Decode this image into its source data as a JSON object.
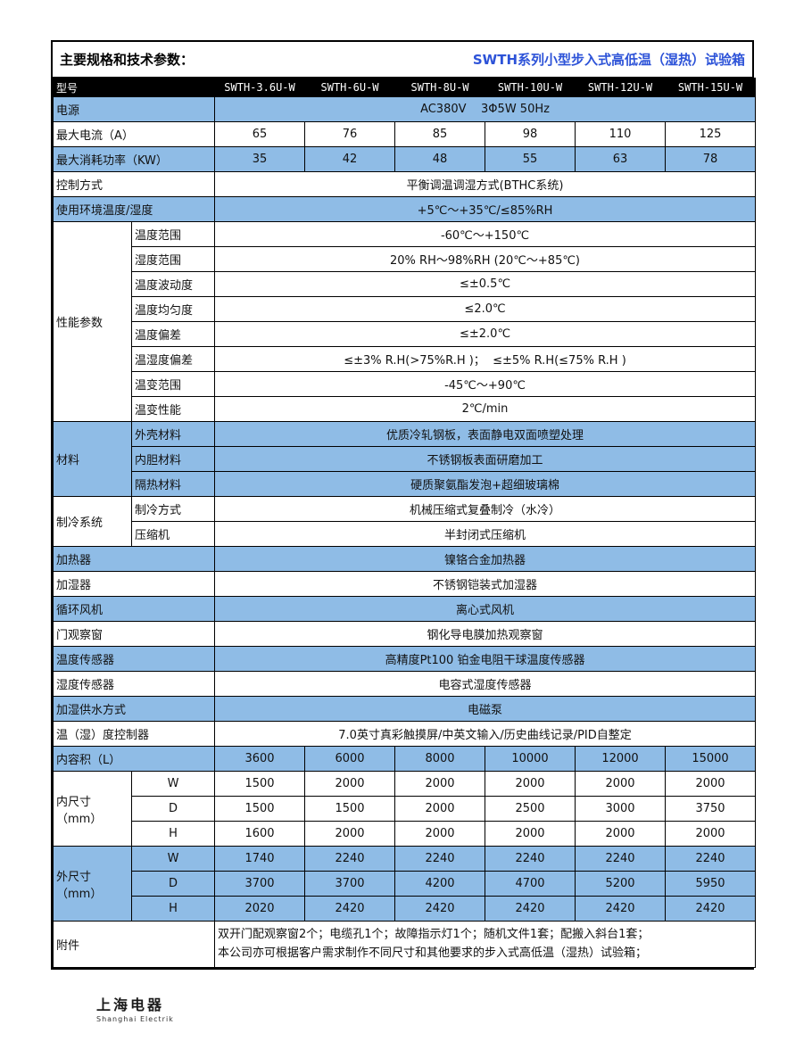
{
  "header": {
    "page_title": "主要规格和技术参数：",
    "series_title": "SWTH系列小型步入式高低温（湿热）试验箱"
  },
  "colors": {
    "row_blue": "#8FBCE6",
    "series_title_blue": "#2D53D8",
    "model_row_bg": "#000000",
    "border": "#000000"
  },
  "models_row": {
    "label": "型号",
    "models": [
      "SWTH-3.6U-W",
      "SWTH-6U-W",
      "SWTH-8U-W",
      "SWTH-10U-W",
      "SWTH-12U-W",
      "SWTH-15U-W"
    ]
  },
  "rows": [
    {
      "kind": "merged",
      "label": "电源",
      "value": "AC380V    3Φ5W 50Hz",
      "shade": "blue"
    },
    {
      "kind": "cols",
      "label": "最大电流（A）",
      "values": [
        "65",
        "76",
        "85",
        "98",
        "110",
        "125"
      ],
      "shade": "white"
    },
    {
      "kind": "cols",
      "label": "最大消耗功率（KW）",
      "values": [
        "35",
        "42",
        "48",
        "55",
        "63",
        "78"
      ],
      "shade": "blue"
    },
    {
      "kind": "merged",
      "label": "控制方式",
      "value": "平衡调温调湿方式(BTHC系统)",
      "shade": "white"
    },
    {
      "kind": "merged",
      "label": "使用环境温度/湿度",
      "value": "+5℃～+35℃/≤85%RH",
      "shade": "blue"
    },
    {
      "kind": "group",
      "label": "性能参数",
      "shade": "white",
      "subs": [
        {
          "sub": "温度范围",
          "value": "-60℃～+150℃"
        },
        {
          "sub": "湿度范围",
          "value": "20% RH～98%RH (20℃～+85℃)"
        },
        {
          "sub": "温度波动度",
          "value": "≤±0.5℃"
        },
        {
          "sub": "温度均匀度",
          "value": "≤2.0℃"
        },
        {
          "sub": "温度偏差",
          "value": "≤±2.0℃"
        },
        {
          "sub": "温湿度偏差",
          "value": "≤±3% R.H(>75%R.H )；  ≤±5% R.H(≤75% R.H )"
        },
        {
          "sub": "温变范围",
          "value": "-45℃～+90℃"
        },
        {
          "sub": "温变性能",
          "value": "2℃/min"
        }
      ]
    },
    {
      "kind": "group",
      "label": "材料",
      "shade": "blue",
      "subs": [
        {
          "sub": "外壳材料",
          "value": "优质冷轧钢板，表面静电双面喷塑处理"
        },
        {
          "sub": "内胆材料",
          "value": "不锈钢板表面研磨加工"
        },
        {
          "sub": "隔热材料",
          "value": "硬质聚氨酯发泡+超细玻璃棉"
        }
      ]
    },
    {
      "kind": "group",
      "label": "制冷系统",
      "shade": "white",
      "subs": [
        {
          "sub": "制冷方式",
          "value": "机械压缩式复叠制冷（水冷）"
        },
        {
          "sub": "压缩机",
          "value": "半封闭式压缩机"
        }
      ]
    },
    {
      "kind": "merged",
      "label": "加热器",
      "value": "镍铬合金加热器",
      "shade": "blue"
    },
    {
      "kind": "merged",
      "label": "加湿器",
      "value": "不锈钢铠装式加湿器",
      "shade": "white"
    },
    {
      "kind": "merged",
      "label": "循环风机",
      "value": "离心式风机",
      "shade": "blue"
    },
    {
      "kind": "merged",
      "label": "门观察窗",
      "value": "钢化导电膜加热观察窗",
      "shade": "white"
    },
    {
      "kind": "merged",
      "label": "温度传感器",
      "value": "高精度Pt100 铂金电阻干球温度传感器",
      "shade": "blue"
    },
    {
      "kind": "merged",
      "label": "湿度传感器",
      "value": "电容式湿度传感器",
      "shade": "white"
    },
    {
      "kind": "merged",
      "label": "加湿供水方式",
      "value": "电磁泵",
      "shade": "blue"
    },
    {
      "kind": "merged",
      "label": "温（湿）度控制器",
      "value": "7.0英寸真彩触摸屏/中英文输入/历史曲线记录/PID自整定",
      "shade": "white"
    },
    {
      "kind": "cols",
      "label": "内容积（L）",
      "values": [
        "3600",
        "6000",
        "8000",
        "10000",
        "12000",
        "15000"
      ],
      "shade": "blue"
    },
    {
      "kind": "group-cols",
      "label": "内尺寸（mm）",
      "shade": "white",
      "subs": [
        {
          "sub": "W",
          "values": [
            "1500",
            "2000",
            "2000",
            "2000",
            "2000",
            "2000"
          ]
        },
        {
          "sub": "D",
          "values": [
            "1500",
            "1500",
            "2000",
            "2500",
            "3000",
            "3750"
          ]
        },
        {
          "sub": "H",
          "values": [
            "1600",
            "2000",
            "2000",
            "2000",
            "2000",
            "2000"
          ]
        }
      ]
    },
    {
      "kind": "group-cols",
      "label": "外尺寸（mm）",
      "shade": "blue",
      "subs": [
        {
          "sub": "W",
          "values": [
            "1740",
            "2240",
            "2240",
            "2240",
            "2240",
            "2240"
          ]
        },
        {
          "sub": "D",
          "values": [
            "3700",
            "3700",
            "4200",
            "4700",
            "5200",
            "5950"
          ]
        },
        {
          "sub": "H",
          "values": [
            "2020",
            "2420",
            "2420",
            "2420",
            "2420",
            "2420"
          ]
        }
      ]
    },
    {
      "kind": "multiline",
      "label": "附件",
      "shade": "white",
      "lines": [
        "双开门配观察窗2个；电缆孔1个；故障指示灯1个；随机文件1套；配搬入斜台1套；",
        "本公司亦可根据客户需求制作不同尺寸和其他要求的步入式高低温（湿热）试验箱；"
      ]
    }
  ],
  "logo": {
    "cn": "上海电器",
    "en": "Shanghai Electrik"
  }
}
